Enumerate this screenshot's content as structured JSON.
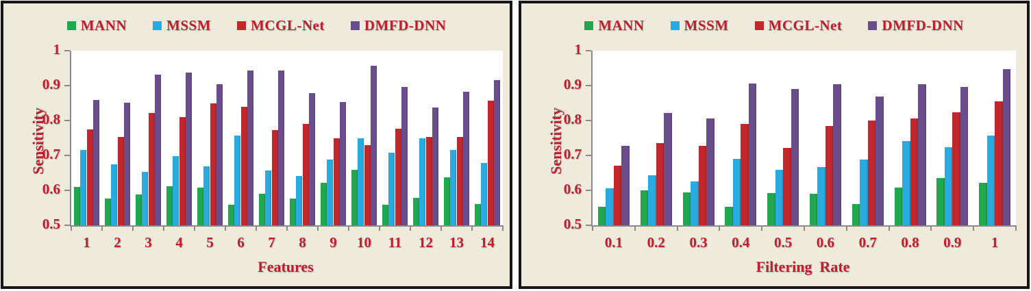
{
  "figure": {
    "background_color": "#EEEBDC",
    "panel_border_color": "#161616",
    "axis_color": "#8a8a8a",
    "text_color": "#BE1E2D",
    "series_colors": {
      "MANN": "#21A74E",
      "MSSM": "#29ABE2",
      "MCGL-Net": "#C1272D",
      "DMFD-DNN": "#6A4D8B"
    }
  },
  "chart_data": [
    {
      "type": "bar",
      "title": "",
      "xlabel": "Features",
      "ylabel": "Sensitivity",
      "ylim": [
        0.5,
        1.0
      ],
      "ytick_labels": [
        "1",
        "0.9",
        "0.8",
        "0.7",
        "0.6",
        "0.5"
      ],
      "ytick_values": [
        1.0,
        0.9,
        0.8,
        0.7,
        0.6,
        0.5
      ],
      "grid": false,
      "legend_position": "top",
      "categories": [
        "1",
        "2",
        "3",
        "4",
        "5",
        "6",
        "7",
        "8",
        "9",
        "10",
        "11",
        "12",
        "13",
        "14"
      ],
      "series": [
        {
          "name": "MANN",
          "color": "#21A74E",
          "values": [
            0.61,
            0.576,
            0.589,
            0.612,
            0.608,
            0.558,
            0.59,
            0.576,
            0.622,
            0.659,
            0.559,
            0.578,
            0.637,
            0.561
          ]
        },
        {
          "name": "MSSM",
          "color": "#29ABE2",
          "values": [
            0.716,
            0.675,
            0.653,
            0.698,
            0.668,
            0.757,
            0.657,
            0.641,
            0.688,
            0.749,
            0.708,
            0.749,
            0.716,
            0.678
          ]
        },
        {
          "name": "MCGL-Net",
          "color": "#C1272D",
          "values": [
            0.775,
            0.753,
            0.822,
            0.809,
            0.849,
            0.839,
            0.773,
            0.79,
            0.749,
            0.729,
            0.776,
            0.753,
            0.753,
            0.857
          ]
        },
        {
          "name": "DMFD-DNN",
          "color": "#6A4D8B",
          "values": [
            0.859,
            0.851,
            0.932,
            0.938,
            0.903,
            0.944,
            0.943,
            0.878,
            0.853,
            0.957,
            0.896,
            0.837,
            0.882,
            0.916
          ]
        }
      ]
    },
    {
      "type": "bar",
      "title": "",
      "xlabel": "Filtering  Rate",
      "ylabel": "Sensitivity",
      "ylim": [
        0.5,
        1.0
      ],
      "ytick_labels": [
        "1",
        "0.9",
        "0.8",
        "0.7",
        "0.6",
        "0.5"
      ],
      "ytick_values": [
        1.0,
        0.9,
        0.8,
        0.7,
        0.6,
        0.5
      ],
      "grid": false,
      "legend_position": "top",
      "categories": [
        "0.1",
        "0.2",
        "0.3",
        "0.4",
        "0.5",
        "0.6",
        "0.7",
        "0.8",
        "0.9",
        "1"
      ],
      "series": [
        {
          "name": "MANN",
          "color": "#21A74E",
          "values": [
            0.552,
            0.601,
            0.594,
            0.552,
            0.593,
            0.591,
            0.561,
            0.607,
            0.635,
            0.621
          ]
        },
        {
          "name": "MSSM",
          "color": "#29ABE2",
          "values": [
            0.605,
            0.643,
            0.626,
            0.69,
            0.659,
            0.666,
            0.689,
            0.742,
            0.724,
            0.757
          ]
        },
        {
          "name": "MCGL-Net",
          "color": "#C1272D",
          "values": [
            0.671,
            0.736,
            0.727,
            0.791,
            0.722,
            0.785,
            0.8,
            0.806,
            0.823,
            0.855
          ]
        },
        {
          "name": "DMFD-DNN",
          "color": "#6A4D8B",
          "values": [
            0.727,
            0.822,
            0.806,
            0.906,
            0.891,
            0.903,
            0.868,
            0.903,
            0.897,
            0.948
          ]
        }
      ]
    }
  ]
}
